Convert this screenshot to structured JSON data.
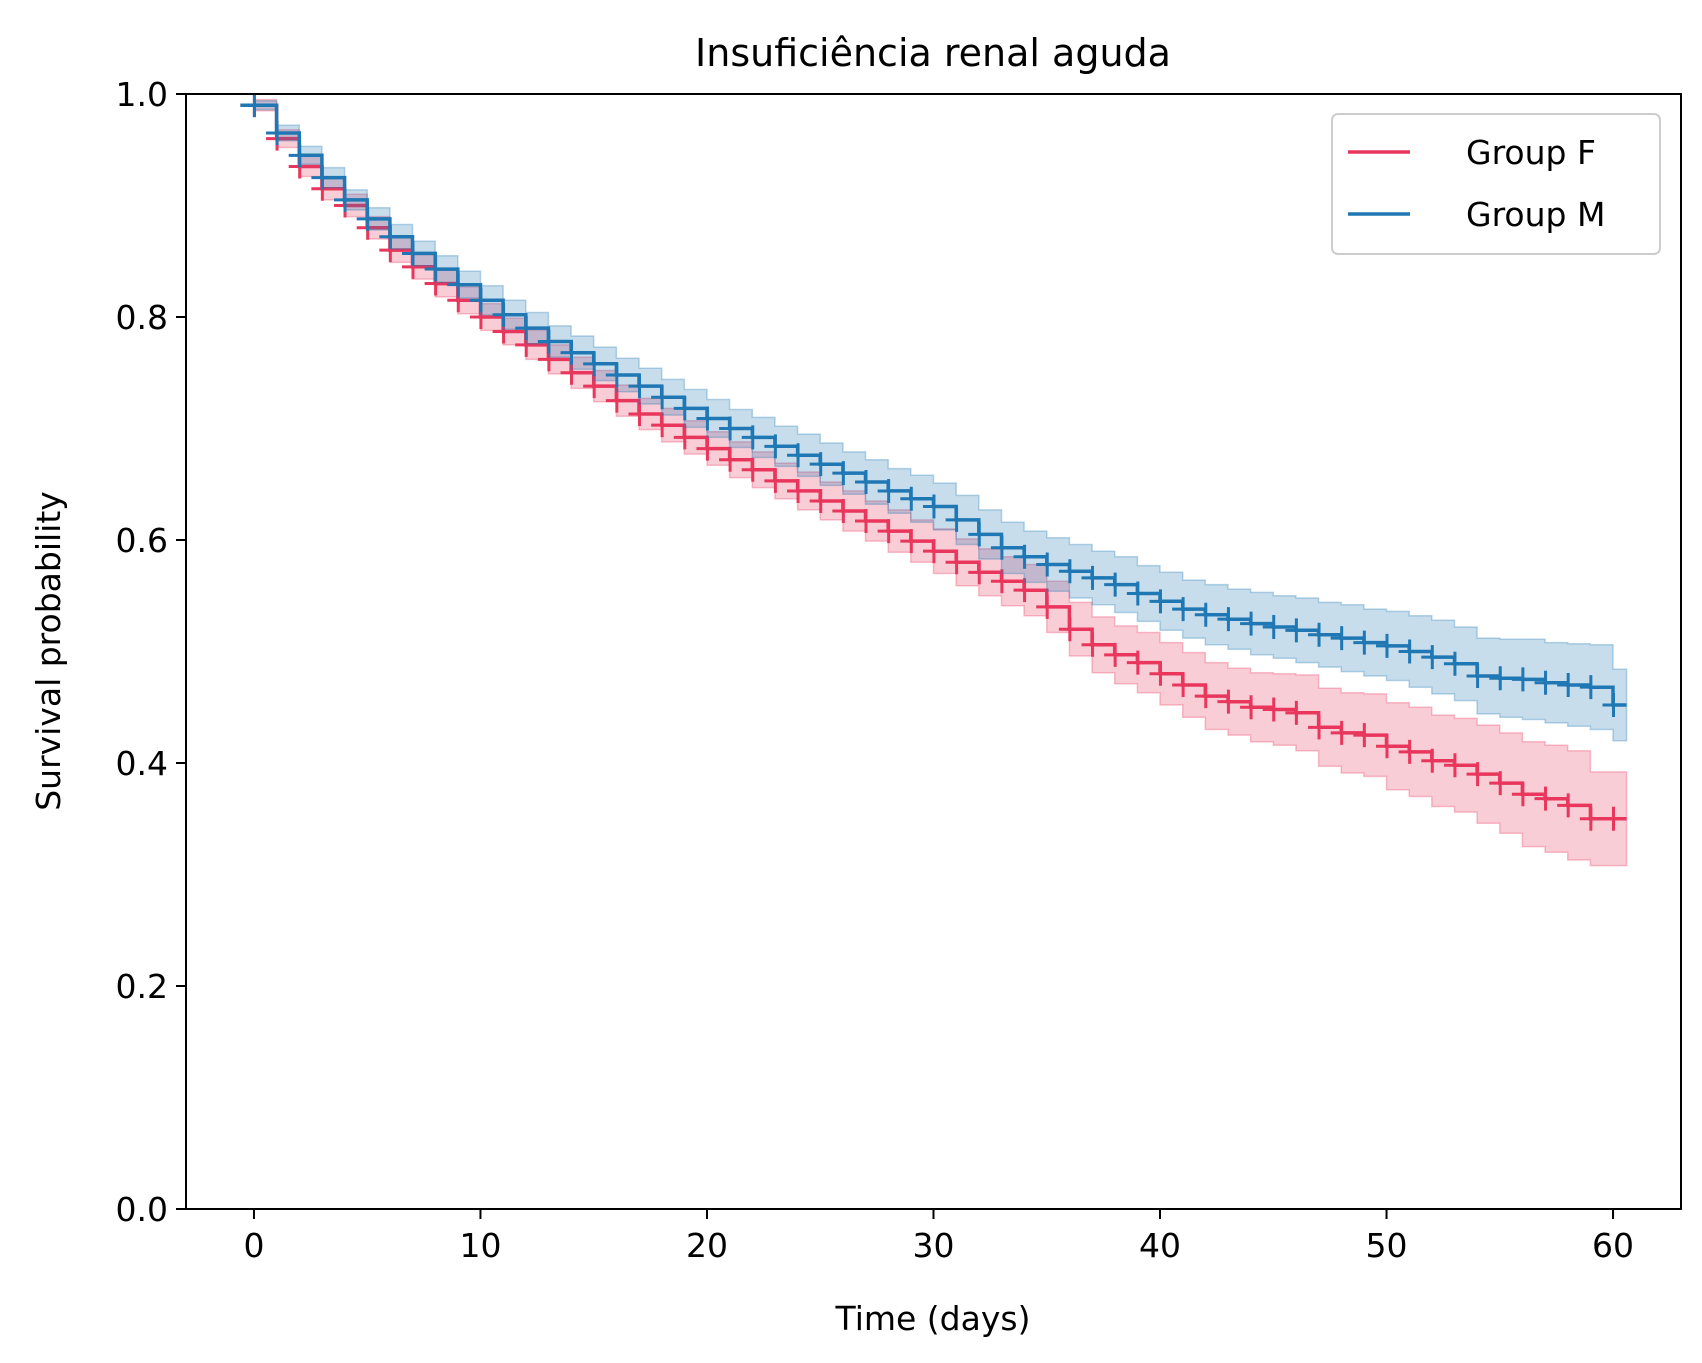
{
  "chart_data": {
    "type": "line",
    "subtype": "kaplan-meier step with confidence bands and censor marks",
    "title": "Insuficiência renal aguda",
    "xlabel": "Time (days)",
    "ylabel": "Survival probability",
    "xlim": [
      -3,
      63
    ],
    "ylim": [
      0,
      1
    ],
    "xticks": [
      0,
      10,
      20,
      30,
      40,
      50,
      60
    ],
    "yticks": [
      0.0,
      0.2,
      0.4,
      0.6,
      0.8,
      1.0
    ],
    "xtick_labels": [
      "0",
      "10",
      "20",
      "30",
      "40",
      "50",
      "60"
    ],
    "ytick_labels": [
      "0.0",
      "0.2",
      "0.4",
      "0.6",
      "0.8",
      "1.0"
    ],
    "grid": false,
    "legend": "top-right",
    "series": [
      {
        "name": "Group F",
        "color": "#e8365d",
        "x": [
          0,
          1,
          2,
          3,
          4,
          5,
          6,
          7,
          8,
          9,
          10,
          11,
          12,
          13,
          14,
          15,
          16,
          17,
          18,
          19,
          20,
          21,
          22,
          23,
          24,
          25,
          26,
          27,
          28,
          29,
          30,
          31,
          32,
          33,
          34,
          35,
          36,
          37,
          38,
          39,
          40,
          41,
          42,
          43,
          44,
          45,
          46,
          47,
          48,
          49,
          50,
          51,
          52,
          53,
          54,
          55,
          56,
          57,
          58,
          59,
          60
        ],
        "y": [
          0.99,
          0.96,
          0.935,
          0.915,
          0.9,
          0.88,
          0.86,
          0.845,
          0.83,
          0.815,
          0.8,
          0.787,
          0.775,
          0.762,
          0.75,
          0.738,
          0.725,
          0.713,
          0.703,
          0.692,
          0.682,
          0.672,
          0.663,
          0.653,
          0.644,
          0.635,
          0.626,
          0.617,
          0.608,
          0.599,
          0.59,
          0.58,
          0.571,
          0.563,
          0.555,
          0.54,
          0.52,
          0.506,
          0.497,
          0.49,
          0.48,
          0.47,
          0.46,
          0.455,
          0.45,
          0.448,
          0.445,
          0.432,
          0.427,
          0.425,
          0.415,
          0.41,
          0.402,
          0.398,
          0.39,
          0.382,
          0.372,
          0.368,
          0.362,
          0.35,
          0.35
        ],
        "ci_lower": [
          0.985,
          0.952,
          0.926,
          0.905,
          0.89,
          0.87,
          0.849,
          0.834,
          0.818,
          0.803,
          0.788,
          0.775,
          0.762,
          0.749,
          0.736,
          0.724,
          0.711,
          0.699,
          0.688,
          0.677,
          0.667,
          0.656,
          0.647,
          0.637,
          0.627,
          0.618,
          0.608,
          0.599,
          0.589,
          0.58,
          0.57,
          0.559,
          0.55,
          0.541,
          0.532,
          0.517,
          0.496,
          0.481,
          0.471,
          0.463,
          0.452,
          0.441,
          0.43,
          0.425,
          0.419,
          0.416,
          0.411,
          0.397,
          0.391,
          0.388,
          0.376,
          0.37,
          0.361,
          0.356,
          0.346,
          0.337,
          0.325,
          0.32,
          0.313,
          0.308,
          0.308
        ],
        "ci_upper": [
          0.995,
          0.968,
          0.944,
          0.925,
          0.91,
          0.89,
          0.871,
          0.856,
          0.842,
          0.827,
          0.812,
          0.799,
          0.788,
          0.775,
          0.764,
          0.752,
          0.739,
          0.727,
          0.718,
          0.707,
          0.697,
          0.688,
          0.679,
          0.669,
          0.661,
          0.652,
          0.644,
          0.635,
          0.627,
          0.618,
          0.61,
          0.601,
          0.592,
          0.585,
          0.578,
          0.563,
          0.544,
          0.531,
          0.523,
          0.517,
          0.508,
          0.499,
          0.49,
          0.485,
          0.481,
          0.48,
          0.479,
          0.467,
          0.463,
          0.462,
          0.454,
          0.45,
          0.443,
          0.44,
          0.434,
          0.427,
          0.419,
          0.416,
          0.411,
          0.392,
          0.392
        ]
      },
      {
        "name": "Group M",
        "color": "#1f77b4",
        "x": [
          0,
          1,
          2,
          3,
          4,
          5,
          6,
          7,
          8,
          9,
          10,
          11,
          12,
          13,
          14,
          15,
          16,
          17,
          18,
          19,
          20,
          21,
          22,
          23,
          24,
          25,
          26,
          27,
          28,
          29,
          30,
          31,
          32,
          33,
          34,
          35,
          36,
          37,
          38,
          39,
          40,
          41,
          42,
          43,
          44,
          45,
          46,
          47,
          48,
          49,
          50,
          51,
          52,
          53,
          54,
          55,
          56,
          57,
          58,
          59,
          60
        ],
        "y": [
          0.99,
          0.965,
          0.945,
          0.925,
          0.905,
          0.888,
          0.872,
          0.857,
          0.843,
          0.829,
          0.815,
          0.802,
          0.79,
          0.778,
          0.768,
          0.758,
          0.748,
          0.738,
          0.728,
          0.718,
          0.709,
          0.7,
          0.692,
          0.684,
          0.676,
          0.668,
          0.66,
          0.652,
          0.644,
          0.637,
          0.63,
          0.618,
          0.605,
          0.593,
          0.585,
          0.578,
          0.572,
          0.566,
          0.56,
          0.552,
          0.545,
          0.538,
          0.533,
          0.529,
          0.525,
          0.522,
          0.519,
          0.515,
          0.512,
          0.508,
          0.505,
          0.5,
          0.495,
          0.489,
          0.478,
          0.476,
          0.475,
          0.472,
          0.47,
          0.468,
          0.452
        ],
        "ci_lower": [
          0.986,
          0.958,
          0.937,
          0.916,
          0.896,
          0.878,
          0.861,
          0.846,
          0.831,
          0.817,
          0.802,
          0.789,
          0.776,
          0.764,
          0.753,
          0.743,
          0.733,
          0.722,
          0.712,
          0.701,
          0.692,
          0.683,
          0.674,
          0.666,
          0.657,
          0.649,
          0.641,
          0.632,
          0.624,
          0.616,
          0.609,
          0.596,
          0.583,
          0.57,
          0.562,
          0.554,
          0.548,
          0.542,
          0.535,
          0.527,
          0.519,
          0.512,
          0.506,
          0.502,
          0.497,
          0.494,
          0.49,
          0.486,
          0.482,
          0.478,
          0.474,
          0.468,
          0.462,
          0.456,
          0.444,
          0.441,
          0.439,
          0.436,
          0.433,
          0.43,
          0.42
        ],
        "ci_upper": [
          0.994,
          0.972,
          0.953,
          0.934,
          0.914,
          0.898,
          0.883,
          0.868,
          0.855,
          0.841,
          0.828,
          0.815,
          0.804,
          0.792,
          0.783,
          0.773,
          0.763,
          0.754,
          0.744,
          0.735,
          0.726,
          0.717,
          0.71,
          0.702,
          0.695,
          0.687,
          0.679,
          0.672,
          0.664,
          0.658,
          0.651,
          0.64,
          0.627,
          0.616,
          0.608,
          0.602,
          0.596,
          0.59,
          0.585,
          0.577,
          0.571,
          0.564,
          0.56,
          0.556,
          0.553,
          0.55,
          0.548,
          0.544,
          0.542,
          0.538,
          0.536,
          0.532,
          0.528,
          0.522,
          0.512,
          0.511,
          0.511,
          0.508,
          0.507,
          0.506,
          0.484
        ]
      }
    ]
  }
}
